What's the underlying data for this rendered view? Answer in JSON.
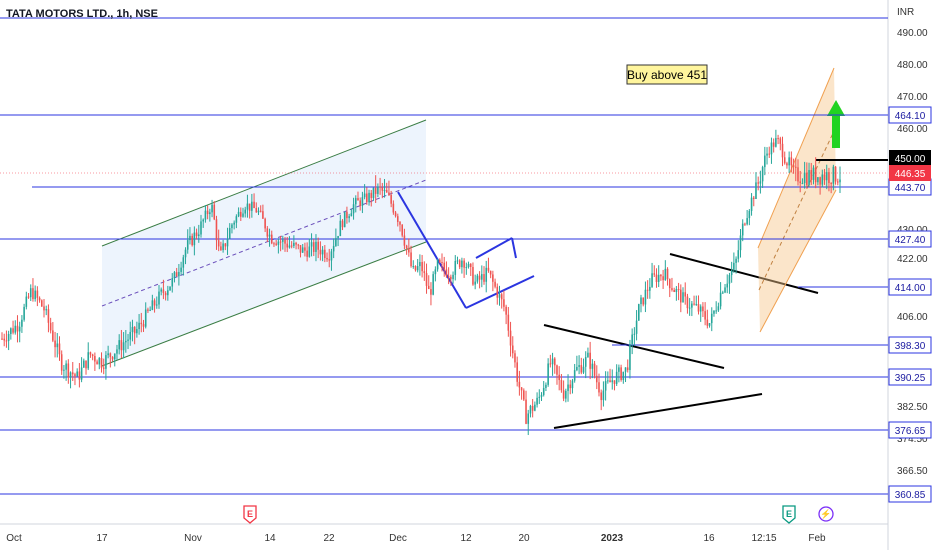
{
  "header": {
    "title": "TATA MOTORS LTD., 1h, NSE"
  },
  "chart_data": {
    "type": "candlestick",
    "currency": "INR",
    "ylim": [
      354,
      498
    ],
    "y_ticks": [
      {
        "label": "490.00",
        "value": 490
      },
      {
        "label": "480.00",
        "value": 480
      },
      {
        "label": "470.00",
        "value": 470
      },
      {
        "label": "460.00",
        "value": 460
      },
      {
        "label": "430.00",
        "value": 430
      },
      {
        "label": "422.00",
        "value": 422
      },
      {
        "label": "406.00",
        "value": 406
      },
      {
        "label": "382.50",
        "value": 382.5
      },
      {
        "label": "374.50",
        "value": 374.5
      },
      {
        "label": "366.50",
        "value": 366.5
      }
    ],
    "levels": [
      {
        "label": "464.10",
        "value": 464.1,
        "tag_bg": "#ffffff",
        "tag_fg": "#1a1aa0"
      },
      {
        "label": "443.70",
        "value": 443.7,
        "tag_bg": "#ffffff",
        "tag_fg": "#1a1aa0"
      },
      {
        "label": "427.40",
        "value": 427.4,
        "tag_bg": "#ffffff",
        "tag_fg": "#1a1aa0"
      },
      {
        "label": "414.00",
        "value": 414.0,
        "tag_bg": "#ffffff",
        "tag_fg": "#1a1aa0"
      },
      {
        "label": "398.30",
        "value": 398.3,
        "tag_bg": "#ffffff",
        "tag_fg": "#1a1aa0"
      },
      {
        "label": "390.25",
        "value": 390.25,
        "tag_bg": "#ffffff",
        "tag_fg": "#1a1aa0"
      },
      {
        "label": "376.65",
        "value": 376.65,
        "tag_bg": "#ffffff",
        "tag_fg": "#1a1aa0"
      },
      {
        "label": "360.85",
        "value": 360.85,
        "tag_bg": "#ffffff",
        "tag_fg": "#1a1aa0"
      }
    ],
    "price_tags": [
      {
        "label": "450.00",
        "value": 450.0,
        "bg": "#000000",
        "fg": "#ffffff"
      },
      {
        "label": "446.35",
        "value": 446.35,
        "bg": "#f23645",
        "fg": "#ffffff"
      }
    ],
    "x_ticks": [
      {
        "label": "Oct",
        "bold": false
      },
      {
        "label": "17",
        "bold": false
      },
      {
        "label": "Nov",
        "bold": false
      },
      {
        "label": "14",
        "bold": false
      },
      {
        "label": "22",
        "bold": false
      },
      {
        "label": "Dec",
        "bold": false
      },
      {
        "label": "12",
        "bold": false
      },
      {
        "label": "20",
        "bold": false
      },
      {
        "label": "2023",
        "bold": true
      },
      {
        "label": "16",
        "bold": false
      },
      {
        "label": "12:15",
        "bold": false
      },
      {
        "label": "Feb",
        "bold": false
      }
    ],
    "annotation": "Buy above 451",
    "event_markers": [
      {
        "symbol": "E",
        "color": "#f23645"
      },
      {
        "symbol": "E",
        "color": "#089981"
      },
      {
        "symbol": "⚡",
        "color": "#7b2ff7"
      }
    ],
    "price_path": [
      [
        0,
        400
      ],
      [
        0.02,
        404
      ],
      [
        0.035,
        413
      ],
      [
        0.05,
        408
      ],
      [
        0.07,
        394
      ],
      [
        0.09,
        390
      ],
      [
        0.105,
        396
      ],
      [
        0.12,
        394
      ],
      [
        0.14,
        398
      ],
      [
        0.16,
        402
      ],
      [
        0.175,
        407
      ],
      [
        0.19,
        412
      ],
      [
        0.205,
        416
      ],
      [
        0.22,
        425
      ],
      [
        0.235,
        430
      ],
      [
        0.25,
        438
      ],
      [
        0.26,
        422
      ],
      [
        0.275,
        432
      ],
      [
        0.29,
        438
      ],
      [
        0.305,
        436
      ],
      [
        0.32,
        428
      ],
      [
        0.34,
        426
      ],
      [
        0.36,
        424
      ],
      [
        0.375,
        425
      ],
      [
        0.39,
        423
      ],
      [
        0.405,
        432
      ],
      [
        0.42,
        438
      ],
      [
        0.435,
        440
      ],
      [
        0.45,
        443
      ],
      [
        0.46,
        441
      ],
      [
        0.475,
        432
      ],
      [
        0.49,
        418
      ],
      [
        0.5,
        420
      ],
      [
        0.51,
        412
      ],
      [
        0.52,
        420
      ],
      [
        0.535,
        418
      ],
      [
        0.55,
        422
      ],
      [
        0.565,
        415
      ],
      [
        0.58,
        418
      ],
      [
        0.6,
        408
      ],
      [
        0.615,
        390
      ],
      [
        0.625,
        380
      ],
      [
        0.64,
        384
      ],
      [
        0.655,
        394
      ],
      [
        0.67,
        386
      ],
      [
        0.685,
        392
      ],
      [
        0.7,
        395
      ],
      [
        0.715,
        386
      ],
      [
        0.73,
        390
      ],
      [
        0.745,
        392
      ],
      [
        0.76,
        408
      ],
      [
        0.775,
        416
      ],
      [
        0.79,
        418
      ],
      [
        0.8,
        414
      ],
      [
        0.815,
        410
      ],
      [
        0.83,
        408
      ],
      [
        0.845,
        404
      ],
      [
        0.86,
        414
      ],
      [
        0.875,
        420
      ],
      [
        0.885,
        432
      ],
      [
        0.895,
        440
      ],
      [
        0.905,
        446
      ],
      [
        0.915,
        453
      ],
      [
        0.925,
        456
      ],
      [
        0.935,
        450
      ],
      [
        0.945,
        446
      ]
    ]
  }
}
